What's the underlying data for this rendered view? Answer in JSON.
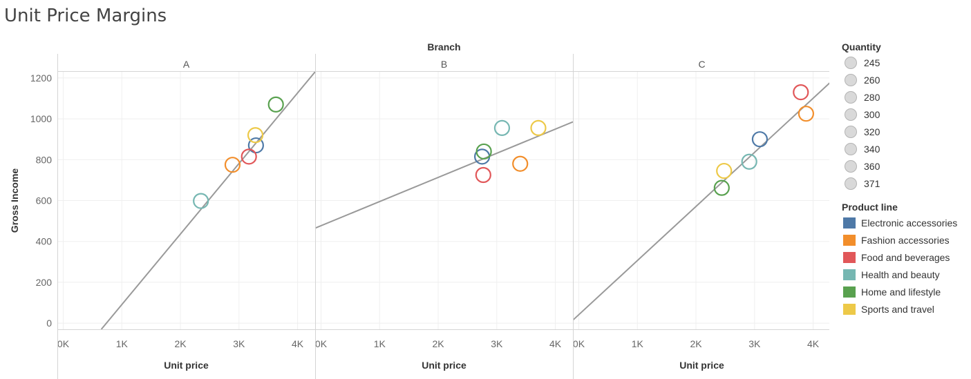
{
  "title": "Unit Price Margins",
  "chart_data": {
    "type": "scatter",
    "column_header": "Branch",
    "panels": [
      "A",
      "B",
      "C"
    ],
    "xlabel": "Unit price",
    "ylabel": "Gross Income",
    "xlim": [
      -100,
      4300
    ],
    "ylim": [
      -30,
      1230
    ],
    "x_ticks": [
      0,
      1000,
      2000,
      3000,
      4000
    ],
    "x_tick_labels": [
      "0K",
      "1K",
      "2K",
      "3K",
      "4K"
    ],
    "y_ticks": [
      0,
      200,
      400,
      600,
      800,
      1000,
      1200
    ],
    "y_tick_labels": [
      "0",
      "200",
      "400",
      "600",
      "800",
      "1000",
      "1200"
    ],
    "grid": true,
    "legend_position": "right",
    "series": [
      {
        "name": "Electronic accessories",
        "color": "#4e79a7",
        "points": {
          "A": [
            3290,
            870
          ],
          "B": [
            2750,
            815
          ],
          "C": [
            3090,
            900
          ]
        }
      },
      {
        "name": "Fashion accessories",
        "color": "#f28e2b",
        "points": {
          "A": [
            2890,
            775
          ],
          "B": [
            3400,
            780
          ],
          "C": [
            3880,
            1025
          ]
        }
      },
      {
        "name": "Food and beverages",
        "color": "#e15759",
        "points": {
          "A": [
            3170,
            815
          ],
          "B": [
            2770,
            725
          ],
          "C": [
            3790,
            1130
          ]
        }
      },
      {
        "name": "Health and beauty",
        "color": "#76b7b2",
        "points": {
          "A": [
            2350,
            598
          ],
          "B": [
            3090,
            955
          ],
          "C": [
            2910,
            790
          ]
        }
      },
      {
        "name": "Home and lifestyle",
        "color": "#59a14f",
        "points": {
          "A": [
            3630,
            1070
          ],
          "B": [
            2780,
            840
          ],
          "C": [
            2440,
            662
          ]
        }
      },
      {
        "name": "Sports and travel",
        "color": "#edc948",
        "points": {
          "A": [
            3280,
            920
          ],
          "B": [
            3710,
            955
          ],
          "C": [
            2480,
            745
          ]
        }
      }
    ],
    "trend_lines": {
      "A": [
        [
          650,
          -30
        ],
        [
          4300,
          1230
        ]
      ],
      "B": [
        [
          -100,
          465
        ],
        [
          4300,
          985
        ]
      ],
      "C": [
        [
          -100,
          15
        ],
        [
          4300,
          1180
        ]
      ]
    },
    "size_legend": {
      "title": "Quantity",
      "values": [
        "245",
        "260",
        "280",
        "300",
        "320",
        "340",
        "360",
        "371"
      ]
    },
    "color_legend": {
      "title": "Product line"
    }
  }
}
